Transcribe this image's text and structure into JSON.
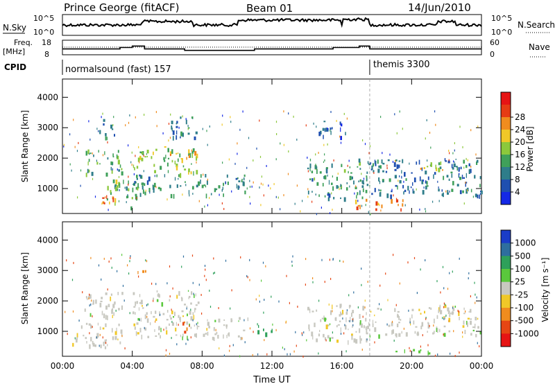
{
  "header": {
    "station": "Prince George (fitACF)",
    "beam": "Beam 01",
    "date": "14/Jun/2010"
  },
  "top_panels": {
    "nsky_label": "N.Sky",
    "nsky_ticks": [
      "10^5",
      "10^0"
    ],
    "nsearch_label": "N.Search",
    "nsearch_ticks": [
      "10^5",
      "10^0"
    ],
    "freq_label": "Freq.",
    "freq_unit": "[MHz]",
    "freq_ticks": [
      "18",
      "8"
    ],
    "nave_label": "Nave",
    "nave_ticks": [
      "60",
      "0"
    ],
    "cpid_label": "CPID",
    "cpid_segments": [
      {
        "label": "normalsound (fast) 157",
        "start_hour": 0.0
      },
      {
        "label": "themis 3300",
        "start_hour": 17.6
      }
    ],
    "freq_trace": [
      [
        0,
        12
      ],
      [
        3.3,
        12
      ],
      [
        3.3,
        13
      ],
      [
        4.0,
        13
      ],
      [
        4.0,
        14
      ],
      [
        4.7,
        14
      ],
      [
        4.7,
        12
      ],
      [
        7.0,
        12
      ],
      [
        7.0,
        11
      ],
      [
        11.0,
        11
      ],
      [
        11.0,
        12
      ],
      [
        15.5,
        12
      ],
      [
        15.5,
        13
      ],
      [
        17.0,
        13
      ],
      [
        17.0,
        14
      ],
      [
        17.6,
        14
      ],
      [
        17.6,
        12
      ],
      [
        24,
        12
      ]
    ],
    "nave_level": 34
  },
  "chart_data": [
    {
      "type": "heatmap",
      "title": "Power",
      "xlabel": "Time UT",
      "ylabel": "Slant Range [km]",
      "xlim": [
        0,
        24
      ],
      "ylim": [
        180,
        4600
      ],
      "x_ticks": [
        "00:00",
        "04:00",
        "08:00",
        "12:00",
        "16:00",
        "20:00",
        "00:00"
      ],
      "y_ticks": [
        1000,
        2000,
        3000,
        4000
      ],
      "colorbar": {
        "label": "Power [dB]",
        "ticks": [
          4,
          8,
          12,
          16,
          20,
          24,
          28
        ],
        "colors": [
          "#1428e6",
          "#1f4fb0",
          "#2e7d8a",
          "#3fa05a",
          "#8cc83c",
          "#f0c828",
          "#f08c1e",
          "#e63c14",
          "#e61414"
        ]
      },
      "echo_regions": [
        {
          "t0": 1.2,
          "t1": 3.6,
          "r0": 1500,
          "r1": 2300,
          "power": 14
        },
        {
          "t0": 2.0,
          "t1": 3.0,
          "r0": 2700,
          "r1": 3300,
          "power": 9
        },
        {
          "t0": 4.0,
          "t1": 7.8,
          "r0": 1500,
          "r1": 2400,
          "power": 18
        },
        {
          "t0": 6.0,
          "t1": 7.8,
          "r0": 2700,
          "r1": 3400,
          "power": 10
        },
        {
          "t0": 4.0,
          "t1": 10.6,
          "r0": 800,
          "r1": 1500,
          "power": 12
        },
        {
          "t0": 2.5,
          "t1": 4.5,
          "r0": 400,
          "r1": 1300,
          "power": 16
        },
        {
          "t0": 14.0,
          "t1": 17.6,
          "r0": 700,
          "r1": 2000,
          "power": 12
        },
        {
          "t0": 14.5,
          "t1": 16.2,
          "r0": 2700,
          "r1": 3300,
          "power": 7
        },
        {
          "t0": 17.6,
          "t1": 24.0,
          "r0": 800,
          "r1": 2000,
          "power": 9
        },
        {
          "t0": 17.8,
          "t1": 19.5,
          "r0": 300,
          "r1": 700,
          "power": 27
        },
        {
          "t0": 16.6,
          "t1": 17.4,
          "r0": 300,
          "r1": 700,
          "power": 26
        },
        {
          "t0": 2.2,
          "t1": 3.2,
          "r0": 400,
          "r1": 800,
          "power": 27
        },
        {
          "t0": 20.0,
          "t1": 21.8,
          "r0": 1600,
          "r1": 1900,
          "power": 22
        },
        {
          "t0": 6.5,
          "t1": 7.6,
          "r0": 2000,
          "r1": 2300,
          "power": 24
        }
      ]
    },
    {
      "type": "heatmap",
      "title": "Velocity",
      "xlabel": "Time UT",
      "ylabel": "Slant Range [km]",
      "xlim": [
        0,
        24
      ],
      "ylim": [
        180,
        4600
      ],
      "x_ticks": [
        "00:00",
        "04:00",
        "08:00",
        "12:00",
        "16:00",
        "20:00",
        "00:00"
      ],
      "y_ticks": [
        1000,
        2000,
        3000,
        4000
      ],
      "colorbar": {
        "label": "Velocity [m s⁻¹]",
        "ticks": [
          1000,
          500,
          100,
          25,
          -25,
          -100,
          -500,
          -1000
        ],
        "colors": [
          "#1a3cc8",
          "#2e6e9e",
          "#2ea05a",
          "#5ac83c",
          "#c8c8c0",
          "#f0c828",
          "#f08c1e",
          "#e64614",
          "#e61414"
        ]
      },
      "echo_regions": [
        {
          "t0": 1.2,
          "t1": 3.6,
          "r0": 1500,
          "r1": 2300,
          "velocity": 0
        },
        {
          "t0": 4.0,
          "t1": 7.8,
          "r0": 1500,
          "r1": 2400,
          "velocity": 0
        },
        {
          "t0": 4.0,
          "t1": 10.6,
          "r0": 800,
          "r1": 1500,
          "velocity": 0
        },
        {
          "t0": 0.5,
          "t1": 3.5,
          "r0": 500,
          "r1": 1300,
          "velocity": 0
        },
        {
          "t0": 14.0,
          "t1": 17.6,
          "r0": 700,
          "r1": 2000,
          "velocity": 0
        },
        {
          "t0": 17.6,
          "t1": 24.0,
          "r0": 900,
          "r1": 1800,
          "velocity": 0
        },
        {
          "t0": 11.0,
          "t1": 12.0,
          "r0": 900,
          "r1": 1300,
          "velocity": 150
        },
        {
          "t0": 6.8,
          "t1": 7.4,
          "r0": 1000,
          "r1": 1400,
          "velocity": -500
        },
        {
          "t0": 4.3,
          "t1": 4.8,
          "r0": 2800,
          "r1": 3200,
          "velocity": -400
        },
        {
          "t0": 19.0,
          "t1": 21.0,
          "r0": 300,
          "r1": 500,
          "velocity": 80
        },
        {
          "t0": 21.5,
          "t1": 22.5,
          "r0": 1700,
          "r1": 1950,
          "velocity": 0
        }
      ]
    }
  ]
}
